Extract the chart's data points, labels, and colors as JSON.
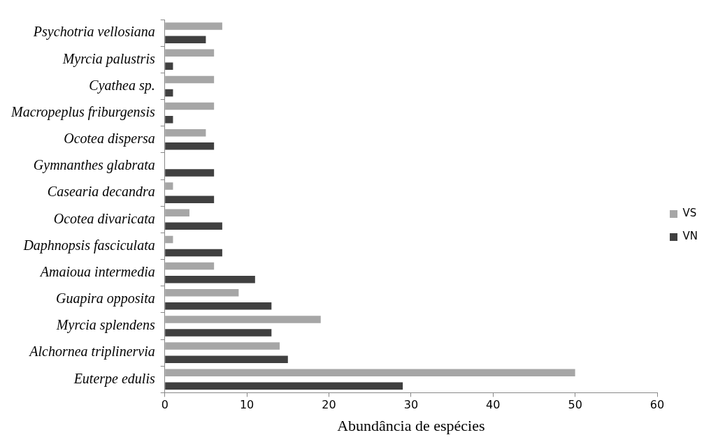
{
  "chart_data": {
    "type": "bar",
    "orientation": "horizontal",
    "xlabel": "Abundância de espécies",
    "categories": [
      "Psychotria vellosiana",
      "Myrcia palustris",
      "Cyathea sp.",
      "Macropeplus friburgensis",
      "Ocotea dispersa",
      "Gymnanthes glabrata",
      "Casearia decandra",
      "Ocotea divaricata",
      "Daphnopsis fasciculata",
      "Amaioua intermedia",
      "Guapira opposita",
      "Myrcia splendens",
      "Alchornea triplinervia",
      "Euterpe edulis"
    ],
    "series": [
      {
        "name": "VS",
        "color": "#a6a6a6",
        "values": [
          7,
          6,
          6,
          6,
          5,
          0,
          1,
          3,
          1,
          6,
          9,
          19,
          14,
          50
        ]
      },
      {
        "name": "VN",
        "color": "#404040",
        "values": [
          5,
          1,
          1,
          1,
          6,
          6,
          6,
          7,
          7,
          11,
          13,
          13,
          15,
          29
        ]
      }
    ],
    "xlim": [
      0,
      60
    ],
    "xticks": [
      0,
      10,
      20,
      30,
      40,
      50,
      60
    ],
    "grid": false,
    "legend": "right"
  }
}
